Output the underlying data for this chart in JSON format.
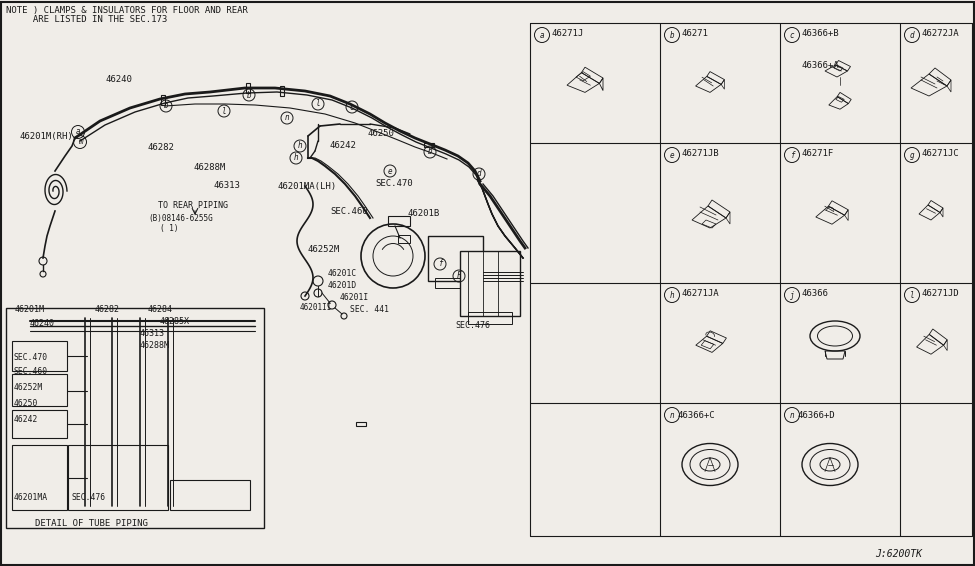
{
  "bg": "#f0ede8",
  "fg": "#1a1a1a",
  "note1": "NOTE ) CLAMPS & INSULATORS FOR FLOOR AND REAR",
  "note2": "     ARE LISTED IN THE SEC.173",
  "footer": "J:6200TK",
  "grid_x": [
    530,
    660,
    780,
    900,
    972
  ],
  "grid_y": [
    30,
    163,
    283,
    423,
    543
  ],
  "row1_labels": [
    "a",
    "b",
    "c",
    "d"
  ],
  "row2_labels": [
    "e",
    "f",
    "g"
  ],
  "row3_labels": [
    "h",
    "j",
    "l"
  ],
  "row4_labels": [
    "n",
    "n"
  ],
  "row1_parts": [
    "46271J",
    "46271",
    "",
    "46272JA"
  ],
  "row1c_parts": [
    "46366+B",
    "46366+A"
  ],
  "row2_parts": [
    "46271JB",
    "46271F",
    "46271JC"
  ],
  "row3_parts": [
    "46271JA",
    "46366",
    "46271JD"
  ],
  "row4_parts": [
    "46366+C",
    "46366+D"
  ]
}
